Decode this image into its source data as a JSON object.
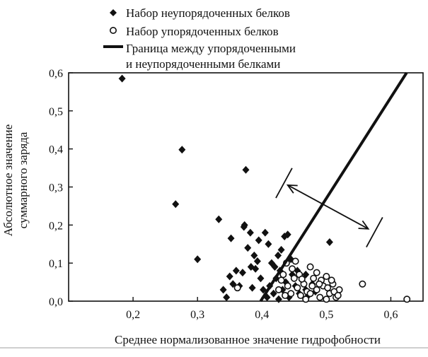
{
  "chart_data": {
    "type": "scatter",
    "xlabel": "Среднее нормализованное значение гидрофобности",
    "ylabel_lines": [
      "Абсолютное значение",
      "суммарного заряда"
    ],
    "xlim": [
      0.1,
      0.65
    ],
    "ylim": [
      0.0,
      0.6
    ],
    "xticks": [
      0.2,
      0.3,
      0.4,
      0.5,
      0.6
    ],
    "xtick_labels": [
      "0,2",
      "0,3",
      "0,4",
      "0,5",
      "0,6"
    ],
    "yticks": [
      0.0,
      0.1,
      0.2,
      0.3,
      0.4,
      0.5,
      0.6
    ],
    "ytick_labels": [
      "0,0",
      "0,1",
      "0,2",
      "0,3",
      "0,4",
      "0,5",
      "0,6"
    ],
    "grid": false,
    "legend_position": "top",
    "legend": {
      "unordered": "Набор неупорядоченных белков",
      "ordered": "Набор упорядоченных белков",
      "boundary_line1": "Граница между упорядоченными",
      "boundary_line2": "и неупорядоченными белками"
    },
    "series": [
      {
        "name": "Набор неупорядоченных белков",
        "marker": "diamond",
        "points": [
          [
            0.183,
            0.585
          ],
          [
            0.276,
            0.398
          ],
          [
            0.266,
            0.255
          ],
          [
            0.3,
            0.11
          ],
          [
            0.375,
            0.345
          ],
          [
            0.333,
            0.215
          ],
          [
            0.352,
            0.165
          ],
          [
            0.373,
            0.2
          ],
          [
            0.372,
            0.195
          ],
          [
            0.35,
            0.065
          ],
          [
            0.36,
            0.08
          ],
          [
            0.345,
            0.01
          ],
          [
            0.34,
            0.03
          ],
          [
            0.355,
            0.045
          ],
          [
            0.37,
            0.075
          ],
          [
            0.378,
            0.14
          ],
          [
            0.382,
            0.18
          ],
          [
            0.39,
            0.085
          ],
          [
            0.388,
            0.12
          ],
          [
            0.395,
            0.16
          ],
          [
            0.405,
            0.18
          ],
          [
            0.41,
            0.15
          ],
          [
            0.415,
            0.1
          ],
          [
            0.42,
            0.09
          ],
          [
            0.425,
            0.12
          ],
          [
            0.43,
            0.135
          ],
          [
            0.435,
            0.17
          ],
          [
            0.44,
            0.175
          ],
          [
            0.445,
            0.11
          ],
          [
            0.398,
            0.06
          ],
          [
            0.402,
            0.03
          ],
          [
            0.408,
            0.01
          ],
          [
            0.412,
            0.04
          ],
          [
            0.418,
            0.02
          ],
          [
            0.422,
            0.06
          ],
          [
            0.428,
            0.08
          ],
          [
            0.432,
            0.03
          ],
          [
            0.437,
            0.05
          ],
          [
            0.442,
            0.01
          ],
          [
            0.447,
            0.07
          ],
          [
            0.452,
            0.04
          ],
          [
            0.458,
            0.02
          ],
          [
            0.462,
            0.055
          ],
          [
            0.468,
            0.03
          ],
          [
            0.472,
            0.015
          ],
          [
            0.478,
            0.045
          ],
          [
            0.483,
            0.025
          ],
          [
            0.49,
            0.05
          ],
          [
            0.505,
            0.155
          ],
          [
            0.385,
            0.035
          ],
          [
            0.393,
            0.105
          ],
          [
            0.383,
            0.09
          ],
          [
            0.365,
            0.04
          ],
          [
            0.426,
            0.005
          ],
          [
            0.455,
            0.08
          ],
          [
            0.468,
            0.07
          ]
        ]
      },
      {
        "name": "Набор упорядоченных белков",
        "marker": "circle",
        "points": [
          [
            0.362,
            0.035
          ],
          [
            0.43,
            0.055
          ],
          [
            0.44,
            0.04
          ],
          [
            0.445,
            0.02
          ],
          [
            0.45,
            0.06
          ],
          [
            0.455,
            0.035
          ],
          [
            0.46,
            0.015
          ],
          [
            0.465,
            0.045
          ],
          [
            0.47,
            0.025
          ],
          [
            0.475,
            0.09
          ],
          [
            0.48,
            0.06
          ],
          [
            0.485,
            0.03
          ],
          [
            0.49,
            0.01
          ],
          [
            0.495,
            0.04
          ],
          [
            0.5,
            0.065
          ],
          [
            0.505,
            0.02
          ],
          [
            0.51,
            0.045
          ],
          [
            0.515,
            0.01
          ],
          [
            0.52,
            0.03
          ],
          [
            0.485,
            0.075
          ],
          [
            0.478,
            0.04
          ],
          [
            0.492,
            0.055
          ],
          [
            0.502,
            0.035
          ],
          [
            0.512,
            0.025
          ],
          [
            0.468,
            0.005
          ],
          [
            0.458,
            0.07
          ],
          [
            0.447,
            0.085
          ],
          [
            0.438,
            0.1
          ],
          [
            0.452,
            0.105
          ],
          [
            0.436,
            0.015
          ],
          [
            0.475,
            0.02
          ],
          [
            0.5,
            0.005
          ],
          [
            0.518,
            0.015
          ],
          [
            0.508,
            0.055
          ],
          [
            0.556,
            0.045
          ],
          [
            0.625,
            0.005
          ],
          [
            0.426,
            0.03
          ],
          [
            0.433,
            0.07
          ],
          [
            0.462,
            0.058
          ],
          [
            0.489,
            0.045
          ]
        ]
      }
    ],
    "boundary_line": [
      [
        0.398,
        0.0
      ],
      [
        0.632,
        0.62
      ]
    ],
    "annotation_arrow": {
      "start": [
        0.44,
        0.305
      ],
      "end": [
        0.565,
        0.19
      ]
    }
  }
}
